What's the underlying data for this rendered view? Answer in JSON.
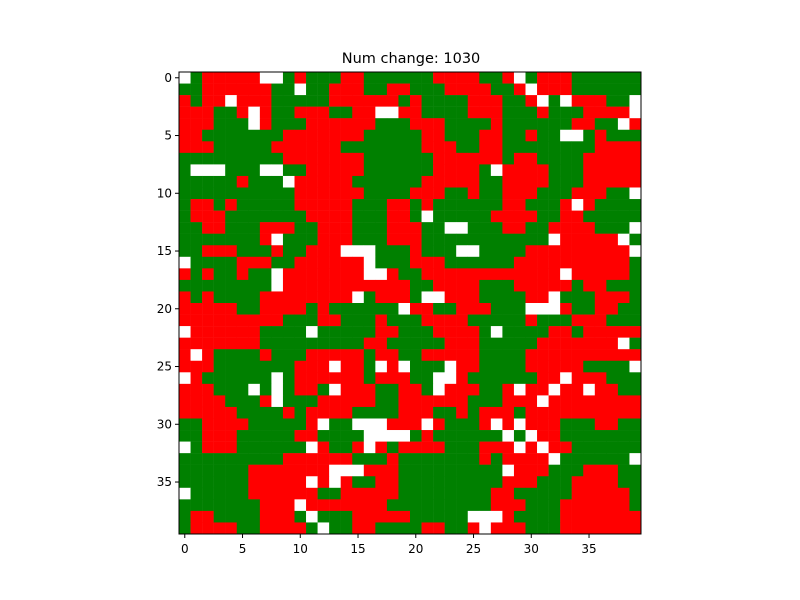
{
  "chart_data": {
    "type": "heatmap",
    "title": "Num change: 1030",
    "xlabel": "",
    "ylabel": "",
    "rows": 40,
    "cols": 40,
    "xlim": [
      -0.5,
      39.5
    ],
    "ylim": [
      39.5,
      -0.5
    ],
    "x_ticks": [
      0,
      5,
      10,
      15,
      20,
      25,
      30,
      35
    ],
    "y_ticks": [
      0,
      5,
      10,
      15,
      20,
      25,
      30,
      35
    ],
    "grid": false,
    "legend": "none",
    "colors": {
      "W": "#ffffff",
      "R": "#ff0000",
      "G": "#008000"
    },
    "grid_rows": [
      "WGRRRRRWWGRGGGRRGGGGGGRRRRGGRWGRRRGGGGGG",
      "GGRRRRRRGGWGGRRRGGRRGGGRRRRGGRWRRRGGGGGG",
      "RGRRWRRRGGGGGRRRRRRGRGGGGRRRGGRWGWRRRGGW",
      "RRRGGRWRGGRRRGGRRWWRRGGGGRRRGGGRGGGRRRRW",
      "RRRGGGWRGGGRRRRRRGGGRRRGGGGRGGGGGGRRGGWR",
      "RRGGGGGGGRRRRRRRGGGGGRRGGGRRGGRGGWWGRGGG",
      "RRRGGGGGRRRRRRGGGGGGGRRRGGRRGGGGGGGGRRRR",
      "GGGGGGGGGRRRRRRRGGGGGGRRRRRRGRRGGGGRRRRR",
      "GWWWGGGWWGGRRRRRGGGGGGRRRRGWRRRRGGGRRRRR",
      "GGGGGRGGGWRRRRRGGGGGGRRRRRGGRRRRGGGRRRRR",
      "GGGGGGGGGGRRRRRRGGGGRRRGGRGGRRRGGGRRRGGW",
      "GRRGRGGGGGRRRRRGGGRRGRGGGGGGRRGGGRWRGGGG",
      "GRRRGGGGGGGRRRRGGGRRGWGGGGGRRRRGGRRGGGGG",
      "GGRRGGGRRRGGRRRGGGRRRGGWWGGGRRGGRRRRGGGW",
      "GGGGGGGRWGGGRRRGGGRRRGGGGGGGGGGGWRRRRRWG",
      "GGRRRGGGRGGRRRWWWGGGRGGGWWGGGGRRRRRRRRRW",
      "WGGGGRRRGGRRRRRRWGGGRRRGGGGGGRRRRRRRRRRG",
      "RGRGGRGGWRRRRRRRWWRGGRRRRRRRRRRRRWRRRRRG",
      "GGGGGGGGWRRRRRRRRRRRGGRRRRGGGRRRRRGRRGGG",
      "RGRGGGGRRRRRRRRWGRRRGWWRRRGGGGRRWGGGRRRG",
      "RRRRRGGRRRRGRGGGGGGWRRGGRRRGGGWWWRGGRRGG",
      "RRRRRRRRRGGGRRGGGRGGGRRRRGGGGGRGGGRRRGGG",
      "WRRRRRRGGGGWGGGGGRRGGGRRRRGWGGGGRRGRRRRR",
      "RRRRRRRGGGGGGGGGRRGGGGGRRRGGGGGRRRRRRRWG",
      "RWRGGGGRGGGRRRRRGRRGGRRRRRGGGGRRRRRRRRRR",
      "RRRGGGGGGGRRRWRRGWRWGGGWRRGGGGRRRRRGGGGW",
      "WRGGGGGGWGRRRRRRGRRRGGWWRGGGGGGRRWRRRGGG",
      "RRRGGGWGWGRRGWRRRGGRRGWRRRGGRWRRWRRWRRGG",
      "RRRRGGGRWGGGRRRRRGGRRRRRRGGGRRRWRRRRRRRR",
      "RRRRRGGGGRGRRRRGGGGRRRGGRGRRRGRRRRRRRRRR",
      "GGRRRRGGGGGRWGGWWWRRRWRGGGRWRWRRRGGGRRGG",
      "GGRRRGGGGGRRGGGGWWWWGRGGGGGGWGWRRGGGGGGG",
      "WGRRRGGGGGGWRGGRWRGRRRRGGGRRRWRWRRGGGGGG",
      "GGGGGGGGGRRRRRRGGGRGGGGGGGRGRRRRWGGGGGGW",
      "GGGGGGRRRRRRRWWWRRRGGGGGGGGGWRRRGGGRRRGG",
      "GGGGGGRRRRRWRWRGGRRGGGGGGGGGRRRGGGRRRRGG",
      "WGGGGGRRRRRRGGRRRRRGGGGGGGGRRGGGGGRRRRRG",
      "GGGGGGGRRRWRRRRRRRGGGGGGGGGRRRGGGRRRRRRG",
      "GRRGGGGRRRGWGGGRRRRRGGGGGWWWRGGGGRRRRRRR",
      "GRRRRGGRRRRGWGGRRGGGGRRGGRWRRRGGGRRRRRRR"
    ]
  }
}
